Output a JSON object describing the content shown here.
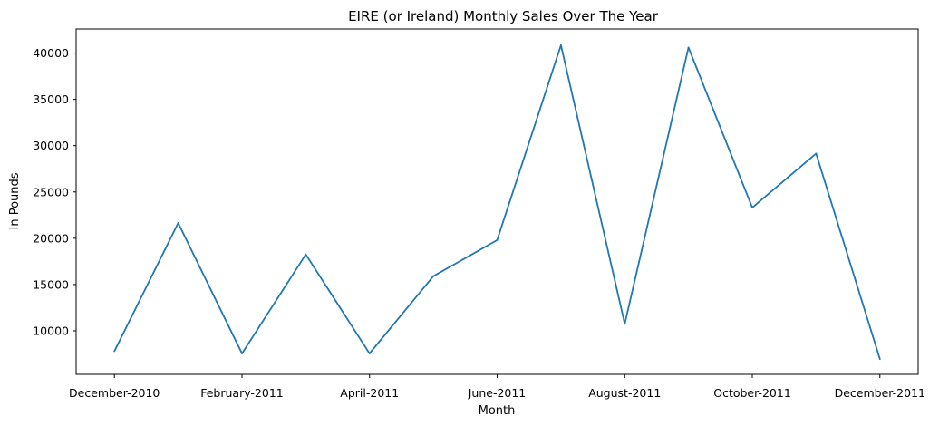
{
  "chart_data": {
    "type": "line",
    "title": "EIRE (or Ireland) Monthly Sales Over The Year",
    "xlabel": "Month",
    "ylabel": "In Pounds",
    "x_tick_labels": [
      "December-2010",
      "February-2011",
      "April-2011",
      "June-2011",
      "August-2011",
      "October-2011",
      "December-2011"
    ],
    "y_tick_labels": [
      "10000",
      "15000",
      "20000",
      "25000",
      "30000",
      "35000",
      "40000"
    ],
    "y_ticks": [
      10000,
      15000,
      20000,
      25000,
      30000,
      35000,
      40000
    ],
    "ylim": [
      5300,
      42600
    ],
    "xlim": [
      -0.6,
      12.6
    ],
    "grid": false,
    "series": [
      {
        "name": "Sales",
        "color": "#1f77b4",
        "values": [
          7800,
          21650,
          7550,
          18250,
          7550,
          15900,
          19800,
          40850,
          10750,
          40600,
          23300,
          29150,
          6950
        ]
      }
    ]
  }
}
